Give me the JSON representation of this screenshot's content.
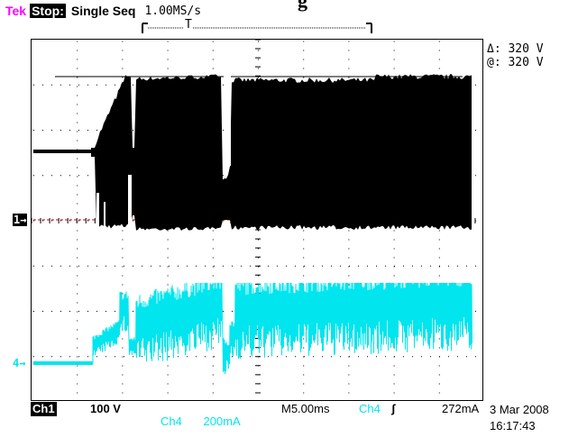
{
  "header": {
    "clipped_title": "g",
    "brand": "Tek",
    "run_state": "Stop:",
    "acquisition_mode": "Single Seq",
    "sample_rate": "1.00MS/s",
    "trigger_position_marker": "T"
  },
  "cursors": {
    "delta": "Δ: 320 V",
    "at": "@: 320 V"
  },
  "markers": {
    "ch1": "1→",
    "ch4": "4→"
  },
  "bottom": {
    "ch1_label": "Ch1",
    "ch1_scale": "100 V",
    "ch4_label": "Ch4",
    "ch4_scale": "200mA",
    "timebase": "M5.00ms",
    "trigger_source": "Ch4",
    "trigger_slope": "ʃ",
    "trigger_level": "272mA"
  },
  "datetime": {
    "date": "3 Mar 2008",
    "time": "16:17:43"
  },
  "colors": {
    "brand": "#ff00ff",
    "ch1_trace": "#000000",
    "ch4_trace": "#00e5ee",
    "ch1_ground": "#cc0000"
  }
}
